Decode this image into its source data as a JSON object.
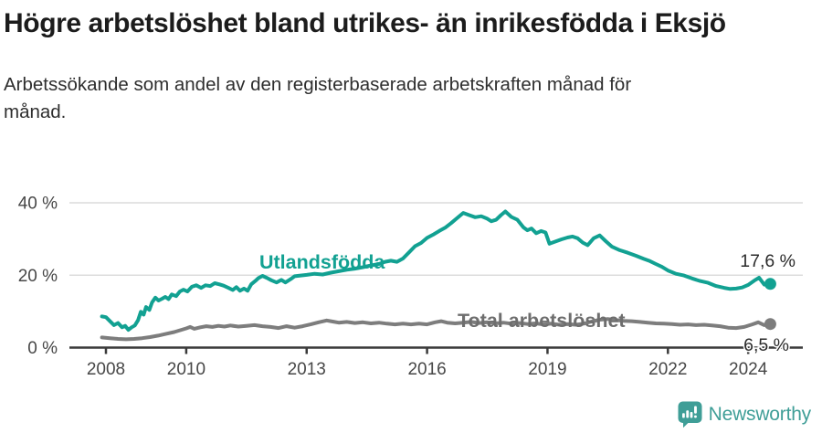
{
  "header": {
    "title": "Högre arbetslöshet bland utrikes- än inrikesfödda i Eksjö",
    "subtitle": "Arbetssökande som andel av den registerbaserade arbetskraften månad för månad."
  },
  "footer": {
    "brand": "Newsworthy"
  },
  "colors": {
    "accent_teal": "#12a192",
    "line_gray": "#7d7d7d",
    "label_gray": "#6e6e6e",
    "logo_teal": "#3f9e97",
    "grid": "#dcdcdc",
    "axis": "#3a3a3a",
    "text_dark": "#1c1c1c"
  },
  "chart_data": {
    "type": "line",
    "unit": "%",
    "grid": "horizontal gridlines at 20 % and 40 %",
    "legend_position": "inline labels on lines",
    "xlim": [
      2007.9,
      2024.9
    ],
    "ylim": [
      0,
      44
    ],
    "x_tick_years": [
      2008,
      2010,
      2013,
      2016,
      2019,
      2022,
      2024
    ],
    "x_tick_labels": [
      "2008",
      "2010",
      "2013",
      "2016",
      "2019",
      "2022",
      "2024"
    ],
    "y_tick_values": [
      0,
      20,
      40
    ],
    "y_tick_labels": [
      "0 %",
      "20 %",
      "40 %"
    ],
    "series": [
      {
        "name": "Utlandsfödda",
        "color": "#12a192",
        "end_label": "17,6 %",
        "end_value": 17.6,
        "points": [
          [
            2007.9,
            8.6
          ],
          [
            2008.0,
            8.4
          ],
          [
            2008.1,
            7.3
          ],
          [
            2008.2,
            6.2
          ],
          [
            2008.3,
            6.8
          ],
          [
            2008.4,
            5.6
          ],
          [
            2008.48,
            6.0
          ],
          [
            2008.56,
            4.9
          ],
          [
            2008.64,
            5.6
          ],
          [
            2008.72,
            6.1
          ],
          [
            2008.8,
            7.6
          ],
          [
            2008.87,
            9.9
          ],
          [
            2008.94,
            9.1
          ],
          [
            2009.0,
            11.2
          ],
          [
            2009.08,
            10.4
          ],
          [
            2009.15,
            12.5
          ],
          [
            2009.23,
            13.8
          ],
          [
            2009.31,
            13.0
          ],
          [
            2009.4,
            13.5
          ],
          [
            2009.48,
            14.0
          ],
          [
            2009.56,
            13.4
          ],
          [
            2009.64,
            14.7
          ],
          [
            2009.75,
            14.2
          ],
          [
            2009.84,
            15.5
          ],
          [
            2009.93,
            16.0
          ],
          [
            2010.03,
            15.5
          ],
          [
            2010.14,
            16.8
          ],
          [
            2010.25,
            17.2
          ],
          [
            2010.37,
            16.5
          ],
          [
            2010.48,
            17.2
          ],
          [
            2010.6,
            17.0
          ],
          [
            2010.71,
            17.8
          ],
          [
            2010.82,
            17.5
          ],
          [
            2010.93,
            17.1
          ],
          [
            2011.05,
            16.5
          ],
          [
            2011.16,
            15.9
          ],
          [
            2011.25,
            16.7
          ],
          [
            2011.34,
            15.7
          ],
          [
            2011.44,
            16.3
          ],
          [
            2011.53,
            15.7
          ],
          [
            2011.62,
            17.5
          ],
          [
            2011.72,
            18.4
          ],
          [
            2011.8,
            19.2
          ],
          [
            2011.9,
            19.8
          ],
          [
            2012.0,
            19.3
          ],
          [
            2012.12,
            18.6
          ],
          [
            2012.25,
            18.0
          ],
          [
            2012.37,
            18.7
          ],
          [
            2012.47,
            18.0
          ],
          [
            2012.6,
            18.9
          ],
          [
            2012.7,
            19.7
          ],
          [
            2012.85,
            19.9
          ],
          [
            2013.0,
            20.1
          ],
          [
            2013.2,
            20.4
          ],
          [
            2013.4,
            20.2
          ],
          [
            2013.6,
            20.7
          ],
          [
            2013.8,
            21.1
          ],
          [
            2014.0,
            21.5
          ],
          [
            2014.2,
            21.8
          ],
          [
            2014.4,
            22.2
          ],
          [
            2014.6,
            22.7
          ],
          [
            2014.8,
            23.1
          ],
          [
            2014.95,
            23.7
          ],
          [
            2015.1,
            24.0
          ],
          [
            2015.25,
            23.7
          ],
          [
            2015.4,
            24.6
          ],
          [
            2015.55,
            26.3
          ],
          [
            2015.7,
            28.0
          ],
          [
            2015.85,
            28.9
          ],
          [
            2016.0,
            30.3
          ],
          [
            2016.15,
            31.2
          ],
          [
            2016.3,
            32.2
          ],
          [
            2016.45,
            33.1
          ],
          [
            2016.6,
            34.4
          ],
          [
            2016.75,
            35.8
          ],
          [
            2016.9,
            37.2
          ],
          [
            2017.05,
            36.6
          ],
          [
            2017.2,
            36.0
          ],
          [
            2017.35,
            36.3
          ],
          [
            2017.5,
            35.6
          ],
          [
            2017.6,
            34.9
          ],
          [
            2017.72,
            35.3
          ],
          [
            2017.84,
            36.6
          ],
          [
            2017.95,
            37.6
          ],
          [
            2018.1,
            36.1
          ],
          [
            2018.25,
            35.3
          ],
          [
            2018.4,
            33.2
          ],
          [
            2018.5,
            32.4
          ],
          [
            2018.6,
            32.9
          ],
          [
            2018.72,
            31.6
          ],
          [
            2018.84,
            32.2
          ],
          [
            2018.95,
            31.8
          ],
          [
            2019.05,
            28.7
          ],
          [
            2019.2,
            29.3
          ],
          [
            2019.35,
            29.9
          ],
          [
            2019.5,
            30.4
          ],
          [
            2019.62,
            30.7
          ],
          [
            2019.75,
            30.2
          ],
          [
            2019.88,
            29.0
          ],
          [
            2020.0,
            28.3
          ],
          [
            2020.15,
            30.2
          ],
          [
            2020.3,
            31.0
          ],
          [
            2020.45,
            29.4
          ],
          [
            2020.6,
            27.9
          ],
          [
            2020.8,
            26.9
          ],
          [
            2021.0,
            26.2
          ],
          [
            2021.2,
            25.4
          ],
          [
            2021.4,
            24.5
          ],
          [
            2021.55,
            23.9
          ],
          [
            2021.7,
            23.1
          ],
          [
            2021.85,
            22.3
          ],
          [
            2022.0,
            21.3
          ],
          [
            2022.2,
            20.4
          ],
          [
            2022.4,
            19.9
          ],
          [
            2022.6,
            19.1
          ],
          [
            2022.8,
            18.4
          ],
          [
            2023.0,
            17.9
          ],
          [
            2023.2,
            17.0
          ],
          [
            2023.4,
            16.5
          ],
          [
            2023.55,
            16.2
          ],
          [
            2023.7,
            16.3
          ],
          [
            2023.85,
            16.6
          ],
          [
            2024.0,
            17.3
          ],
          [
            2024.15,
            18.5
          ],
          [
            2024.27,
            19.3
          ],
          [
            2024.4,
            17.4
          ],
          [
            2024.55,
            17.6
          ]
        ]
      },
      {
        "name": "Total arbetslöshet",
        "color": "#7d7d7d",
        "end_label": "6,5 %",
        "end_value": 6.5,
        "points": [
          [
            2007.9,
            2.8
          ],
          [
            2008.1,
            2.6
          ],
          [
            2008.3,
            2.4
          ],
          [
            2008.5,
            2.3
          ],
          [
            2008.7,
            2.4
          ],
          [
            2008.9,
            2.6
          ],
          [
            2009.1,
            2.9
          ],
          [
            2009.3,
            3.3
          ],
          [
            2009.5,
            3.8
          ],
          [
            2009.7,
            4.3
          ],
          [
            2009.85,
            4.8
          ],
          [
            2010.0,
            5.3
          ],
          [
            2010.1,
            5.7
          ],
          [
            2010.2,
            5.2
          ],
          [
            2010.35,
            5.6
          ],
          [
            2010.5,
            5.9
          ],
          [
            2010.65,
            5.7
          ],
          [
            2010.8,
            6.0
          ],
          [
            2010.95,
            5.8
          ],
          [
            2011.1,
            6.1
          ],
          [
            2011.3,
            5.8
          ],
          [
            2011.5,
            6.0
          ],
          [
            2011.7,
            6.2
          ],
          [
            2011.9,
            5.9
          ],
          [
            2012.1,
            5.7
          ],
          [
            2012.3,
            5.4
          ],
          [
            2012.5,
            5.9
          ],
          [
            2012.7,
            5.5
          ],
          [
            2012.9,
            5.9
          ],
          [
            2013.1,
            6.4
          ],
          [
            2013.3,
            7.0
          ],
          [
            2013.5,
            7.5
          ],
          [
            2013.65,
            7.2
          ],
          [
            2013.8,
            6.9
          ],
          [
            2014.0,
            7.1
          ],
          [
            2014.2,
            6.8
          ],
          [
            2014.4,
            7.0
          ],
          [
            2014.6,
            6.7
          ],
          [
            2014.8,
            6.9
          ],
          [
            2015.0,
            6.6
          ],
          [
            2015.2,
            6.4
          ],
          [
            2015.4,
            6.6
          ],
          [
            2015.6,
            6.4
          ],
          [
            2015.8,
            6.6
          ],
          [
            2016.0,
            6.4
          ],
          [
            2016.2,
            7.0
          ],
          [
            2016.35,
            7.3
          ],
          [
            2016.5,
            6.9
          ],
          [
            2016.7,
            6.7
          ],
          [
            2016.9,
            6.9
          ],
          [
            2017.1,
            7.1
          ],
          [
            2017.3,
            6.8
          ],
          [
            2017.5,
            7.0
          ],
          [
            2017.7,
            6.7
          ],
          [
            2017.9,
            6.9
          ],
          [
            2018.1,
            6.6
          ],
          [
            2018.3,
            6.8
          ],
          [
            2018.5,
            6.5
          ],
          [
            2018.7,
            6.7
          ],
          [
            2018.9,
            6.4
          ],
          [
            2019.1,
            6.6
          ],
          [
            2019.3,
            6.3
          ],
          [
            2019.5,
            6.5
          ],
          [
            2019.7,
            6.3
          ],
          [
            2019.9,
            6.6
          ],
          [
            2020.1,
            7.2
          ],
          [
            2020.3,
            7.7
          ],
          [
            2020.5,
            7.9
          ],
          [
            2020.7,
            7.6
          ],
          [
            2020.9,
            7.4
          ],
          [
            2021.1,
            7.3
          ],
          [
            2021.3,
            7.1
          ],
          [
            2021.5,
            6.9
          ],
          [
            2021.7,
            6.7
          ],
          [
            2021.9,
            6.6
          ],
          [
            2022.1,
            6.5
          ],
          [
            2022.3,
            6.3
          ],
          [
            2022.5,
            6.4
          ],
          [
            2022.7,
            6.2
          ],
          [
            2022.9,
            6.3
          ],
          [
            2023.1,
            6.1
          ],
          [
            2023.3,
            5.9
          ],
          [
            2023.5,
            5.5
          ],
          [
            2023.7,
            5.4
          ],
          [
            2023.9,
            5.7
          ],
          [
            2024.1,
            6.4
          ],
          [
            2024.25,
            7.0
          ],
          [
            2024.4,
            6.2
          ],
          [
            2024.55,
            6.5
          ]
        ]
      }
    ]
  }
}
